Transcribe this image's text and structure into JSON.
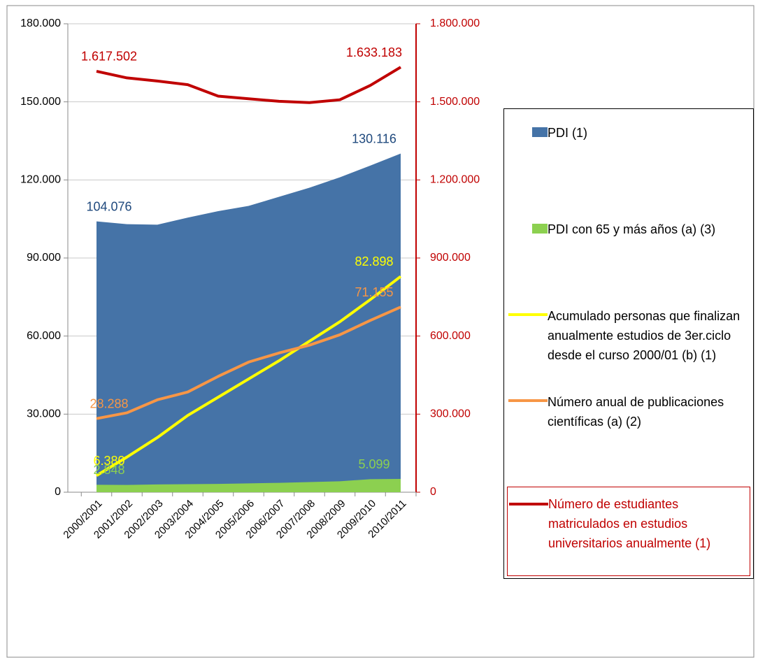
{
  "chart_data": {
    "type": "area-line",
    "categories": [
      "2000/2001",
      "2001/2002",
      "2002/2003",
      "2003/2004",
      "2004/2005",
      "2005/2006",
      "2006/2007",
      "2007/2008",
      "2008/2009",
      "2009/2010",
      "2010/2011"
    ],
    "series": [
      {
        "name": "PDI (1)",
        "kind": "area",
        "color": "#4573a7",
        "values": [
          104076,
          103000,
          102800,
          105500,
          108000,
          110000,
          113500,
          117000,
          121000,
          125500,
          130116
        ],
        "value_labels": [
          "104.076",
          null,
          null,
          null,
          null,
          null,
          null,
          null,
          null,
          null,
          "130.116"
        ]
      },
      {
        "name": "PDI con 65 y más años (a) (3)",
        "kind": "area",
        "color": "#8cd050",
        "values": [
          2848,
          2800,
          3000,
          3100,
          3200,
          3400,
          3600,
          3900,
          4200,
          5000,
          5099
        ],
        "value_labels": [
          "2.848",
          null,
          null,
          null,
          null,
          null,
          null,
          null,
          null,
          null,
          "5.099"
        ]
      },
      {
        "name": "Acumulado personas que finalizan anualmente estudios de 3er.ciclo desde el curso 2000/01 (b) (1)",
        "kind": "line",
        "color": "#ffff00",
        "values": [
          6380,
          13500,
          21000,
          29500,
          36500,
          43500,
          50500,
          58000,
          65500,
          74000,
          82898
        ],
        "value_labels": [
          "6.380",
          null,
          null,
          null,
          null,
          null,
          null,
          null,
          null,
          null,
          "82.898"
        ]
      },
      {
        "name": "Número anual de publicaciones científicas (a) (2)",
        "kind": "line",
        "color": "#f79646",
        "values": [
          28288,
          30500,
          35500,
          38500,
          44500,
          50000,
          53500,
          56500,
          60500,
          66000,
          71155
        ],
        "value_labels": [
          "28.288",
          null,
          null,
          null,
          null,
          null,
          null,
          null,
          null,
          null,
          "71.155"
        ]
      },
      {
        "name": "Número de estudiantes matriculados en estudios universitarios anualmente (1)",
        "kind": "line",
        "axis": "y2",
        "color": "#c00000",
        "values": [
          1617502,
          1592000,
          1580000,
          1566000,
          1522000,
          1512000,
          1502000,
          1497000,
          1508000,
          1563000,
          1633183
        ],
        "value_labels": [
          "1.617.502",
          null,
          null,
          null,
          null,
          null,
          null,
          null,
          null,
          null,
          "1.633.183"
        ]
      }
    ],
    "ylim": [
      0,
      180000
    ],
    "yticks": [
      0,
      {
        "value": 30000,
        "label": "30.000"
      },
      {
        "value": 60000,
        "label": "60.000"
      },
      {
        "value": 90000,
        "label": "90.000"
      },
      {
        "value": 120000,
        "label": "120.000"
      },
      {
        "value": 150000,
        "label": "150.000"
      },
      {
        "value": 180000,
        "label": "180.000"
      }
    ],
    "y2lim": [
      0,
      1800000
    ],
    "y2ticks": [
      0,
      {
        "value": 300000,
        "label": "300.000"
      },
      {
        "value": 600000,
        "label": "600.000"
      },
      {
        "value": 900000,
        "label": "900.000"
      },
      {
        "value": 1200000,
        "label": "1.200.000"
      },
      {
        "value": 1500000,
        "label": "1.500.000"
      },
      {
        "value": 1800000,
        "label": "1.800.000"
      }
    ],
    "y2color": "#c00000",
    "legend": "right"
  }
}
